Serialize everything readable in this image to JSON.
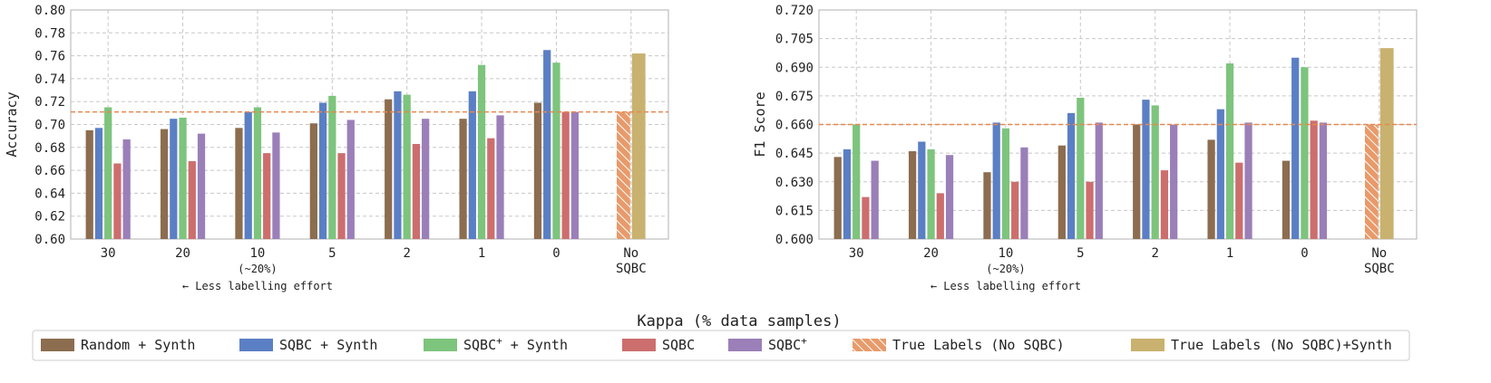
{
  "chart_data": [
    {
      "type": "bar",
      "ylabel": "Accuracy",
      "ylim": [
        0.6,
        0.8
      ],
      "yticks": [
        "0.60",
        "0.62",
        "0.64",
        "0.66",
        "0.68",
        "0.70",
        "0.72",
        "0.74",
        "0.76",
        "0.78",
        "0.80"
      ],
      "categories": [
        "30",
        "20",
        "10",
        "5",
        "2",
        "1",
        "0"
      ],
      "extra_category": [
        "No",
        "SQBC"
      ],
      "tick_note": "(~20%)",
      "arrow_note": "← Less labelling effort",
      "grid": true,
      "reference_line": 0.711,
      "series": [
        {
          "name": "Random + Synth",
          "values": [
            0.695,
            0.696,
            0.697,
            0.701,
            0.722,
            0.705,
            0.719
          ]
        },
        {
          "name": "SQBC + Synth",
          "values": [
            0.697,
            0.705,
            0.711,
            0.719,
            0.729,
            0.729,
            0.765
          ]
        },
        {
          "name": "SQBC+ + Synth",
          "values": [
            0.715,
            0.706,
            0.715,
            0.725,
            0.726,
            0.752,
            0.754
          ]
        },
        {
          "name": "SQBC",
          "values": [
            0.666,
            0.668,
            0.675,
            0.675,
            0.683,
            0.688,
            0.711
          ]
        },
        {
          "name": "SQBC+",
          "values": [
            0.687,
            0.692,
            0.693,
            0.704,
            0.705,
            0.708,
            0.711
          ]
        }
      ],
      "true_labels": 0.711,
      "true_labels_synth": 0.762
    },
    {
      "type": "bar",
      "ylabel": "F1 Score",
      "ylim": [
        0.6,
        0.72
      ],
      "yticks": [
        "0.600",
        "0.615",
        "0.630",
        "0.645",
        "0.660",
        "0.675",
        "0.690",
        "0.705",
        "0.720"
      ],
      "categories": [
        "30",
        "20",
        "10",
        "5",
        "2",
        "1",
        "0"
      ],
      "extra_category": [
        "No",
        "SQBC"
      ],
      "tick_note": "(~20%)",
      "arrow_note": "← Less labelling effort",
      "grid": true,
      "reference_line": 0.66,
      "series": [
        {
          "name": "Random + Synth",
          "values": [
            0.643,
            0.646,
            0.635,
            0.649,
            0.66,
            0.652,
            0.641
          ]
        },
        {
          "name": "SQBC + Synth",
          "values": [
            0.647,
            0.651,
            0.661,
            0.666,
            0.673,
            0.668,
            0.695
          ]
        },
        {
          "name": "SQBC+ + Synth",
          "values": [
            0.66,
            0.647,
            0.658,
            0.674,
            0.67,
            0.692,
            0.69
          ]
        },
        {
          "name": "SQBC",
          "values": [
            0.622,
            0.624,
            0.63,
            0.63,
            0.636,
            0.64,
            0.662
          ]
        },
        {
          "name": "SQBC+",
          "values": [
            0.641,
            0.644,
            0.648,
            0.661,
            0.66,
            0.661,
            0.661
          ]
        }
      ],
      "true_labels": 0.66,
      "true_labels_synth": 0.7
    }
  ],
  "xlabel": "Kappa (% data samples)",
  "legend": {
    "placement": "bottom",
    "entries": [
      {
        "label": "Random + Synth",
        "sup": "",
        "suffix": "",
        "color": "#8c6d4f",
        "hatch": false
      },
      {
        "label": "SQBC + Synth",
        "sup": "",
        "suffix": "",
        "color": "#5b7fc4",
        "hatch": false
      },
      {
        "label": "SQBC",
        "sup": "+",
        "suffix": " + Synth",
        "color": "#7dc47d",
        "hatch": false
      },
      {
        "label": "SQBC",
        "sup": "",
        "suffix": "",
        "color": "#cd6e6e",
        "hatch": false
      },
      {
        "label": "SQBC",
        "sup": "+",
        "suffix": "",
        "color": "#9b7fb8",
        "hatch": false
      },
      {
        "label": "True Labels (No SQBC)",
        "sup": "",
        "suffix": "",
        "color": "#e89a6a",
        "hatch": true
      },
      {
        "label": "True Labels (No SQBC)+Synth",
        "sup": "",
        "suffix": "",
        "color": "#c9b26f",
        "hatch": false
      }
    ]
  },
  "colors": {
    "series": [
      "#8c6d4f",
      "#5b7fc4",
      "#7dc47d",
      "#cd6e6e",
      "#9b7fb8"
    ],
    "true_labels": "#e89a6a",
    "true_labels_synth": "#c9b26f",
    "reference_line": "#e8874e",
    "grid": "#c8c8c8",
    "axis": "#b0b0b0"
  }
}
